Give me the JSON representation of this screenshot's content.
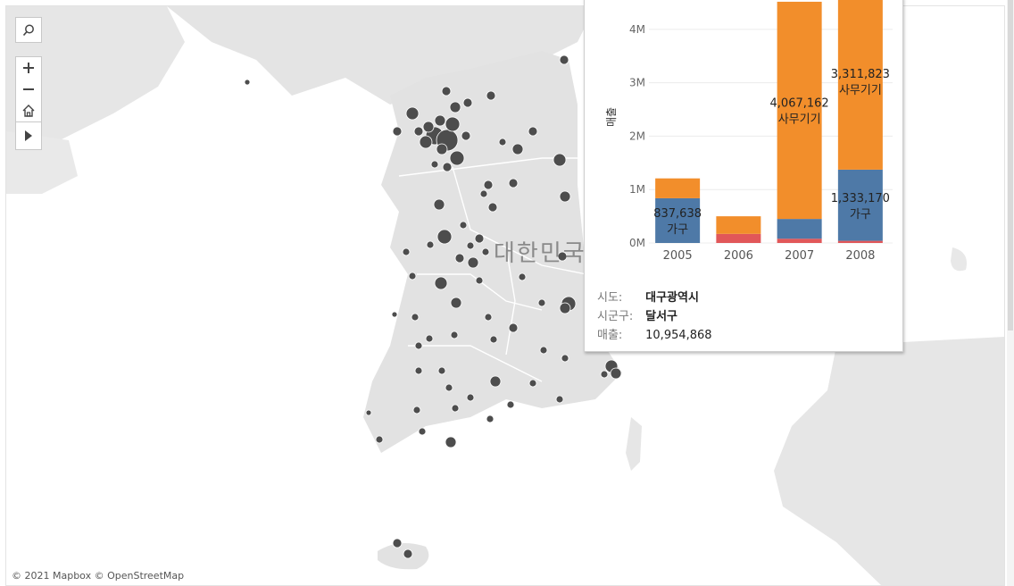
{
  "map": {
    "country_label": "대한민국",
    "attribution": "© 2021 Mapbox  © OpenStreetMap",
    "land_color": "#e8e8e8",
    "marker_color": "#4d4d4d"
  },
  "controls": {
    "search_icon": "search-icon",
    "zoom_in_icon": "plus-icon",
    "zoom_out_icon": "minus-icon",
    "home_icon": "home-icon",
    "expand_icon": "play-icon"
  },
  "tooltip": {
    "fields": [
      {
        "key": "시도:",
        "value": "대구광역시",
        "bold": true
      },
      {
        "key": "시군구:",
        "value": "달서구",
        "bold": true
      },
      {
        "key": "매출:",
        "value": "10,954,868",
        "bold": false
      }
    ],
    "chart_data": {
      "type": "bar",
      "stacked": true,
      "categories": [
        "2005",
        "2006",
        "2007",
        "2008"
      ],
      "ylabel": "매출",
      "ylim": [
        0,
        4600000
      ],
      "yticks": [
        {
          "value": 0,
          "label": "0M"
        },
        {
          "value": 1000000,
          "label": "1M"
        },
        {
          "value": 2000000,
          "label": "2M"
        },
        {
          "value": 3000000,
          "label": "3M"
        },
        {
          "value": 4000000,
          "label": "4M"
        }
      ],
      "grid": true,
      "series": [
        {
          "key": "red",
          "color": "#e15759",
          "values": [
            0,
            170000,
            80000,
            40000
          ]
        },
        {
          "key": "blue",
          "color": "#4e79a7",
          "name": "가구",
          "values": [
            837638,
            0,
            370000,
            1333170
          ]
        },
        {
          "key": "orange",
          "color": "#f28e2b",
          "name": "사무기기",
          "values": [
            372000,
            330000,
            4067162,
            3311823
          ]
        }
      ],
      "data_labels": [
        {
          "category": "2005",
          "series": "blue",
          "value": "837,638",
          "name": "가구"
        },
        {
          "category": "2007",
          "series": "orange",
          "value": "4,067,162",
          "name": "사무기기"
        },
        {
          "category": "2008",
          "series": "orange",
          "value": "3,311,823",
          "name": "사무기기"
        },
        {
          "category": "2008",
          "series": "blue",
          "value": "1,333,170",
          "name": "가구"
        }
      ]
    }
  }
}
